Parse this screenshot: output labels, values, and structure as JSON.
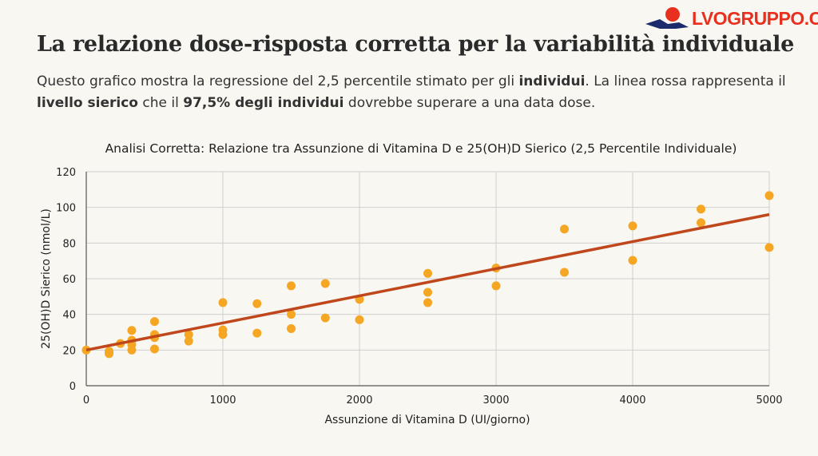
{
  "header": {
    "title": "La relazione dose-risposta corretta per la variabilità individuale",
    "subtitle_parts": [
      {
        "t": "Questo grafico mostra la regressione del 2,5 percentile stimato per gli ",
        "b": false
      },
      {
        "t": "individui",
        "b": true
      },
      {
        "t": ". La linea rossa rappresenta il ",
        "b": false
      },
      {
        "t": "livello sierico",
        "b": true
      },
      {
        "t": " che il ",
        "b": false
      },
      {
        "t": "97,5% degli individui",
        "b": true
      },
      {
        "t": " dovrebbe superare a una data dose.",
        "b": false
      }
    ]
  },
  "logo": {
    "text": "LVOGRUPPO.COM"
  },
  "chart_data": {
    "type": "scatter",
    "title": "Analisi Corretta: Relazione tra Assunzione di Vitamina D e 25(OH)D Sierico (2,5 Percentile Individuale)",
    "xlabel": "Assunzione di Vitamina D (UI/giorno)",
    "ylabel": "25(OH)D Sierico (nmol/L)",
    "xlim": [
      0,
      5000
    ],
    "ylim": [
      0,
      120
    ],
    "xticks": [
      0,
      1000,
      2000,
      3000,
      4000,
      5000
    ],
    "yticks": [
      0,
      20,
      40,
      60,
      80,
      100,
      120
    ],
    "grid": true,
    "point_color": "#f5a623",
    "line_color": "#c0461b",
    "points": [
      [
        0,
        20
      ],
      [
        167,
        19.3
      ],
      [
        167,
        18
      ],
      [
        250,
        23.7
      ],
      [
        333,
        31
      ],
      [
        333,
        25.5
      ],
      [
        333,
        23
      ],
      [
        333,
        20
      ],
      [
        500,
        36
      ],
      [
        500,
        28.7
      ],
      [
        500,
        27
      ],
      [
        500,
        20.6
      ],
      [
        750,
        28.7
      ],
      [
        750,
        25
      ],
      [
        1000,
        46.6
      ],
      [
        1000,
        31.3
      ],
      [
        1000,
        28.7
      ],
      [
        1250,
        46
      ],
      [
        1250,
        29.5
      ],
      [
        1500,
        56
      ],
      [
        1500,
        40
      ],
      [
        1500,
        32
      ],
      [
        1750,
        57.3
      ],
      [
        1750,
        38
      ],
      [
        2000,
        48.4
      ],
      [
        2000,
        37
      ],
      [
        2500,
        63
      ],
      [
        2500,
        52.4
      ],
      [
        2500,
        46.6
      ],
      [
        3000,
        66
      ],
      [
        3000,
        56
      ],
      [
        3500,
        87.8
      ],
      [
        3500,
        63.6
      ],
      [
        4000,
        89.6
      ],
      [
        4000,
        70.3
      ],
      [
        4500,
        99
      ],
      [
        4500,
        91.4
      ],
      [
        5000,
        106.6
      ],
      [
        5000,
        77.5
      ]
    ],
    "regression_line": [
      [
        0,
        20
      ],
      [
        5000,
        96
      ]
    ]
  }
}
